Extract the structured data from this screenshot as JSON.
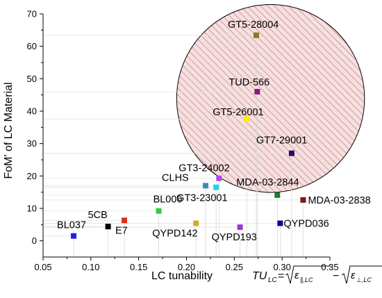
{
  "chart_data": {
    "type": "scatter",
    "xlabel_prefix": "LC tunability ",
    "xlabel_formula": "TU_LC = √ε∥,LC − √ε⊥,LC",
    "ylabel": "FoM' of LC Material",
    "xlim": [
      0.05,
      0.35
    ],
    "ylim": [
      -5,
      70
    ],
    "xticks": [
      "0.05",
      "0.10",
      "0.15",
      "0.20",
      "0.25",
      "0.30",
      "0.35"
    ],
    "yticks": [
      "0",
      "10",
      "20",
      "30",
      "40",
      "50",
      "60",
      "70"
    ],
    "grid": false,
    "legend": "none",
    "highlight_region": {
      "shape": "circle",
      "fill": "hatched-red",
      "contains": [
        "GT5-28004",
        "TUD-566",
        "GT5-26001",
        "GT7-29001"
      ]
    },
    "points": [
      {
        "name": "BL037",
        "x": 0.082,
        "y": 1.5,
        "color": "#1f1fe6"
      },
      {
        "name": "5CB",
        "x": 0.118,
        "y": 4.4,
        "color": "#000000"
      },
      {
        "name": "E7",
        "x": 0.135,
        "y": 6.3,
        "color": "#e03020"
      },
      {
        "name": "BL006",
        "x": 0.171,
        "y": 9.2,
        "color": "#33cc33"
      },
      {
        "name": "QYPD142",
        "x": 0.21,
        "y": 5.4,
        "color": "#c8b02a"
      },
      {
        "name": "CLHS",
        "x": 0.22,
        "y": 17.0,
        "color": "#3a8fb0"
      },
      {
        "name": "GT3-23001",
        "x": 0.231,
        "y": 16.5,
        "color": "#22d4e8"
      },
      {
        "name": "GT3-24002",
        "x": 0.234,
        "y": 19.3,
        "color": "#b04ae8"
      },
      {
        "name": "QYPD193",
        "x": 0.256,
        "y": 4.2,
        "color": "#9b35e0"
      },
      {
        "name": "MDA-03-2844",
        "x": 0.295,
        "y": 14.1,
        "color": "#1f7a2e"
      },
      {
        "name": "QYPD036",
        "x": 0.298,
        "y": 5.4,
        "color": "#0a0a8a"
      },
      {
        "name": "MDA-03-2838",
        "x": 0.322,
        "y": 12.6,
        "color": "#7a1a1a"
      },
      {
        "name": "GT5-28004",
        "x": 0.273,
        "y": 63.4,
        "color": "#8b7a1a"
      },
      {
        "name": "TUD-566",
        "x": 0.274,
        "y": 46.0,
        "color": "#8a1a7a"
      },
      {
        "name": "GT5-26001",
        "x": 0.263,
        "y": 37.6,
        "color": "#ffee00"
      },
      {
        "name": "GT7-29001",
        "x": 0.31,
        "y": 27.0,
        "color": "#2a0a6a"
      }
    ]
  }
}
